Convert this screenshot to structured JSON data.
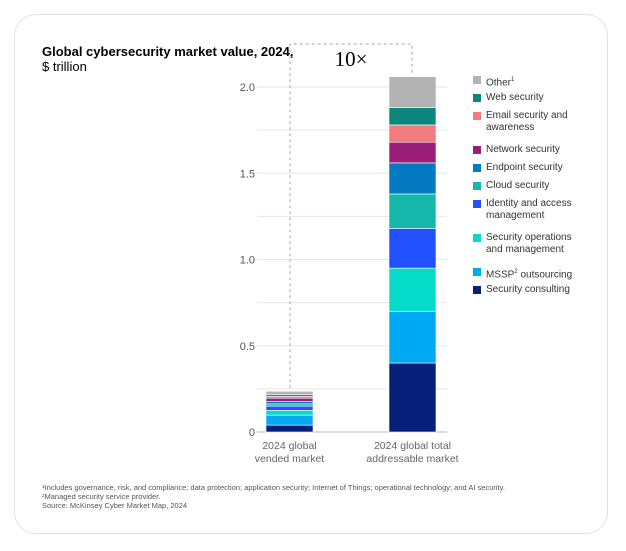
{
  "chart_data": {
    "type": "bar",
    "stacked": true,
    "title": "Global cybersecurity market value, 2024,",
    "subtitle": "$ trillion",
    "categories": [
      "2024 global vended market",
      "2024 global total addressable market"
    ],
    "category_lines": [
      [
        "2024 global",
        "vended market"
      ],
      [
        "2024 global total",
        "addressable market"
      ]
    ],
    "ylim": [
      0,
      2.1
    ],
    "yticks": [
      0,
      0.5,
      1.0,
      1.5,
      2.0
    ],
    "ytick_labels": [
      "0",
      "0.5",
      "1.0",
      "1.5",
      "2.0"
    ],
    "annotation": "10×",
    "series": [
      {
        "name": "Security consulting",
        "lines": [
          "Security consulting"
        ],
        "color": "#061f7a",
        "values": [
          0.04,
          0.4
        ]
      },
      {
        "name": "MSSP² outsourcing",
        "lines": [
          "MSSP² outsourcing"
        ],
        "color": "#00a9f4",
        "values": [
          0.058,
          0.3
        ]
      },
      {
        "name": "Security operations and management",
        "lines": [
          "Security operations",
          "and management"
        ],
        "color": "#06dcc9",
        "values": [
          0.027,
          0.25
        ]
      },
      {
        "name": "Identity and access management",
        "lines": [
          "Identity and access",
          "management"
        ],
        "color": "#2251ff",
        "values": [
          0.025,
          0.23
        ]
      },
      {
        "name": "Cloud security",
        "lines": [
          "Cloud security"
        ],
        "color": "#14b8aa",
        "values": [
          0.013,
          0.2
        ]
      },
      {
        "name": "Endpoint security",
        "lines": [
          "Endpoint security"
        ],
        "color": "#0679c3",
        "values": [
          0.013,
          0.18
        ]
      },
      {
        "name": "Network security",
        "lines": [
          "Network security"
        ],
        "color": "#9b1f7a",
        "values": [
          0.02,
          0.12
        ]
      },
      {
        "name": "Email security and awareness",
        "lines": [
          "Email security and",
          "awareness"
        ],
        "color": "#f37b7b",
        "values": [
          0.01,
          0.1
        ]
      },
      {
        "name": "Web security",
        "lines": [
          "Web security"
        ],
        "color": "#0c877c",
        "values": [
          0.01,
          0.1
        ]
      },
      {
        "name": "Other¹",
        "lines": [
          "Other¹"
        ],
        "color": "#b3b3b3",
        "values": [
          0.02,
          0.18
        ]
      }
    ],
    "footnotes": [
      "¹Includes governance, risk, and compliance; data protection; application security; Internet of Things; operational technology; and AI security.",
      "²Managed security service provider.",
      " Source: McKinsey Cyber Market Map, 2024"
    ]
  }
}
